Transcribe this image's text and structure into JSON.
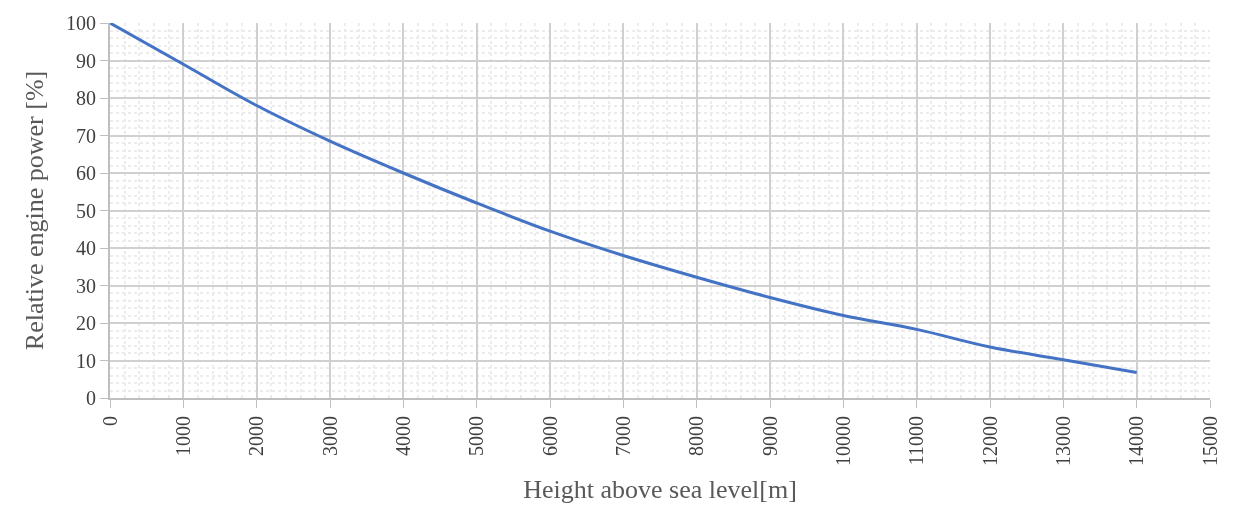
{
  "chart_data": {
    "type": "line",
    "xlabel": "Height above sea level[m]",
    "ylabel": "Relative engine power [%]",
    "x": [
      0,
      1000,
      2000,
      3000,
      4000,
      5000,
      6000,
      7000,
      8000,
      9000,
      10000,
      11000,
      12000,
      13000,
      14000
    ],
    "series": [
      {
        "color": "#4472c4",
        "values": [
          100,
          89,
          78,
          68.5,
          60,
          52,
          44.5,
          38,
          32.2,
          26.8,
          22,
          18.3,
          13.6,
          10.2,
          6.8
        ]
      }
    ],
    "xlim": [
      0,
      15000
    ],
    "xticks": [
      0,
      1000,
      2000,
      3000,
      4000,
      5000,
      6000,
      7000,
      8000,
      9000,
      10000,
      11000,
      12000,
      13000,
      14000,
      15000
    ],
    "ylim": [
      0,
      100
    ],
    "yticks": [
      0,
      10,
      20,
      30,
      40,
      50,
      60,
      70,
      80,
      90,
      100
    ],
    "grid": true,
    "marker": "none",
    "line_style": "solid"
  }
}
